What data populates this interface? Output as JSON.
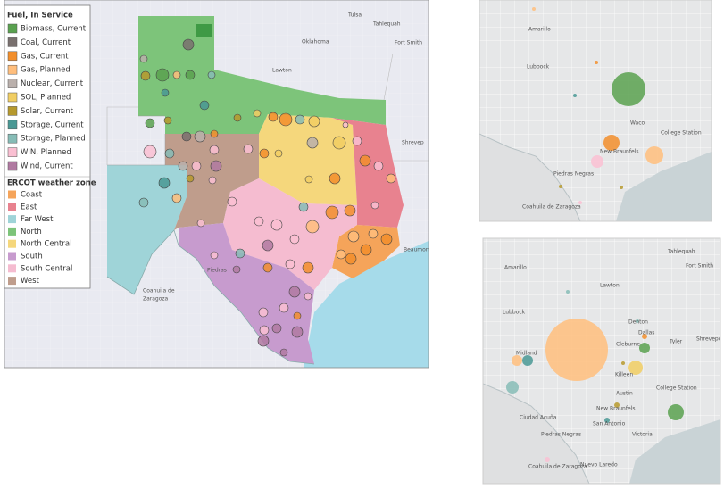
{
  "legend": {
    "fuel_title": "Fuel, In Service",
    "fuel_items": [
      {
        "label": "Biomass, Current",
        "color": "#59a14f"
      },
      {
        "label": "Coal, Current",
        "color": "#79706e"
      },
      {
        "label": "Gas, Current",
        "color": "#f28e2b"
      },
      {
        "label": "Gas, Planned",
        "color": "#ffbe7d"
      },
      {
        "label": "Nuclear, Current",
        "color": "#bab0ac"
      },
      {
        "label": "SOL, Planned",
        "color": "#f1ce63"
      },
      {
        "label": "Solar, Current",
        "color": "#b6992d"
      },
      {
        "label": "Storage, Current",
        "color": "#499894"
      },
      {
        "label": "Storage, Planned",
        "color": "#86bcb6"
      },
      {
        "label": "WIN, Planned",
        "color": "#fabfd2"
      },
      {
        "label": "Wind, Current",
        "color": "#b07aa1"
      }
    ],
    "zone_title": "ERCOT weather zone",
    "zone_items": [
      {
        "label": "Coast",
        "color": "#f5a45a"
      },
      {
        "label": "East",
        "color": "#e8828f"
      },
      {
        "label": "Far West",
        "color": "#9fd4d8"
      },
      {
        "label": "North",
        "color": "#7dc47a"
      },
      {
        "label": "North Central",
        "color": "#f5d77c"
      },
      {
        "label": "South",
        "color": "#c79bce"
      },
      {
        "label": "South Central",
        "color": "#f5bcd0"
      },
      {
        "label": "West",
        "color": "#bf9d8c"
      }
    ]
  },
  "main_map": {
    "labels": [
      "Tulsa",
      "Tahlequah",
      "Oklahoma",
      "Lawton",
      "Fort Smith",
      "Shrevep",
      "Beaumont",
      "Piedras",
      "Coahuila de",
      "Zaragoza"
    ]
  },
  "top_right_map": {
    "labels": [
      "Amarillo",
      "Lubbock",
      "Waco",
      "College Station",
      "New Braunfels",
      "Piedras Negras",
      "Coahuila de Zaragoza"
    ]
  },
  "bottom_right_map": {
    "labels": [
      "Amarillo",
      "Lubbock",
      "Midland",
      "Tahlequah",
      "Fort Smith",
      "Lawton",
      "Denton",
      "Dallas",
      "Cleburne",
      "Tyler",
      "Shreveport",
      "Killeen",
      "Austin",
      "College Station",
      "New Braunfels",
      "San Antonio",
      "Victoria",
      "Ciudad Acuña",
      "Piedras Negras",
      "Nuevo Laredo",
      "Coahuila de Zaragoza"
    ]
  }
}
